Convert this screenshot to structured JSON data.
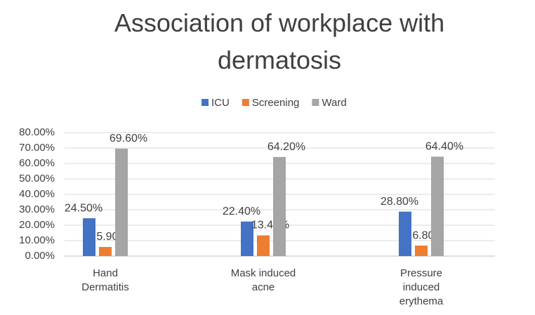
{
  "chart_data": {
    "type": "bar",
    "title": "Association of workplace with dermatosis",
    "categories": [
      "Hand Dermatitis",
      "Mask induced acne",
      "Pressure induced erythema"
    ],
    "series": [
      {
        "name": "ICU",
        "color": "#4472c4",
        "values": [
          24.5,
          22.4,
          28.8
        ],
        "value_labels": [
          "24.50%",
          "22.40%",
          "28.80%"
        ]
      },
      {
        "name": "Screening",
        "color": "#ed7d31",
        "values": [
          5.9,
          13.4,
          6.8
        ],
        "value_labels": [
          "5.90%",
          "13.40%",
          "6.80%"
        ]
      },
      {
        "name": "Ward",
        "color": "#a5a5a5",
        "values": [
          69.6,
          64.2,
          64.4
        ],
        "value_labels": [
          "69.60%",
          "64.20%",
          "64.40%"
        ]
      }
    ],
    "ylim": [
      0,
      80
    ],
    "yticks": [
      {
        "value": 0,
        "label": "0.00%"
      },
      {
        "value": 10,
        "label": "10.00%"
      },
      {
        "value": 20,
        "label": "20.00%"
      },
      {
        "value": 30,
        "label": "30.00%"
      },
      {
        "value": 40,
        "label": "40.00%"
      },
      {
        "value": 50,
        "label": "50.00%"
      },
      {
        "value": 60,
        "label": "60.00%"
      },
      {
        "value": 70,
        "label": "70.00%"
      },
      {
        "value": 80,
        "label": "80.00%"
      }
    ],
    "grid": true,
    "legend": "top"
  }
}
